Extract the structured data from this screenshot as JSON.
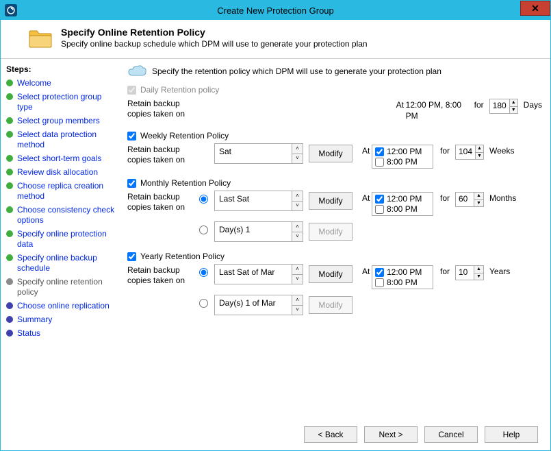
{
  "window": {
    "title": "Create New Protection Group"
  },
  "header": {
    "title": "Specify Online Retention Policy",
    "subtitle": "Specify online backup schedule which DPM will use to generate your protection plan"
  },
  "sidebar": {
    "title": "Steps:",
    "steps": [
      {
        "label": "Welcome",
        "color": "#3fae3f"
      },
      {
        "label": "Select protection group type",
        "color": "#3fae3f"
      },
      {
        "label": "Select group members",
        "color": "#3fae3f"
      },
      {
        "label": "Select data protection method",
        "color": "#3fae3f"
      },
      {
        "label": "Select short-term goals",
        "color": "#3fae3f"
      },
      {
        "label": "Review disk allocation",
        "color": "#3fae3f"
      },
      {
        "label": "Choose replica creation method",
        "color": "#3fae3f"
      },
      {
        "label": "Choose consistency check options",
        "color": "#3fae3f"
      },
      {
        "label": "Specify online protection data",
        "color": "#3fae3f"
      },
      {
        "label": "Specify online backup schedule",
        "color": "#3fae3f"
      },
      {
        "label": "Specify online retention policy",
        "color": "#8a8a8a",
        "current": true
      },
      {
        "label": "Choose online replication",
        "color": "#3f3fae"
      },
      {
        "label": "Summary",
        "color": "#3f3fae"
      },
      {
        "label": "Status",
        "color": "#3f3fae"
      }
    ]
  },
  "content": {
    "intro": "Specify the retention policy which DPM will use to generate your protection plan",
    "retain_label": "Retain backup copies taken on",
    "at_label": "At",
    "for_label": "for",
    "modify_label": "Modify",
    "daily": {
      "title": "Daily Retention policy",
      "times": "12:00 PM, 8:00 PM",
      "value": "180",
      "unit": "Days"
    },
    "weekly": {
      "title": "Weekly Retention Policy",
      "selection": "Sat",
      "time1": "12:00 PM",
      "time2": "8:00 PM",
      "value": "104",
      "unit": "Weeks"
    },
    "monthly": {
      "title": "Monthly Retention Policy",
      "opt1": "Last Sat",
      "opt2": "Day(s) 1",
      "time1": "12:00 PM",
      "time2": "8:00 PM",
      "value": "60",
      "unit": "Months"
    },
    "yearly": {
      "title": "Yearly Retention Policy",
      "opt1": "Last Sat of Mar",
      "opt2": "Day(s) 1 of Mar",
      "time1": "12:00 PM",
      "time2": "8:00 PM",
      "value": "10",
      "unit": "Years"
    }
  },
  "footer": {
    "back": "< Back",
    "next": "Next >",
    "cancel": "Cancel",
    "help": "Help"
  },
  "colors": {
    "titlebar": "#2ab9e0",
    "close": "#c84031",
    "link": "#0026e6"
  }
}
